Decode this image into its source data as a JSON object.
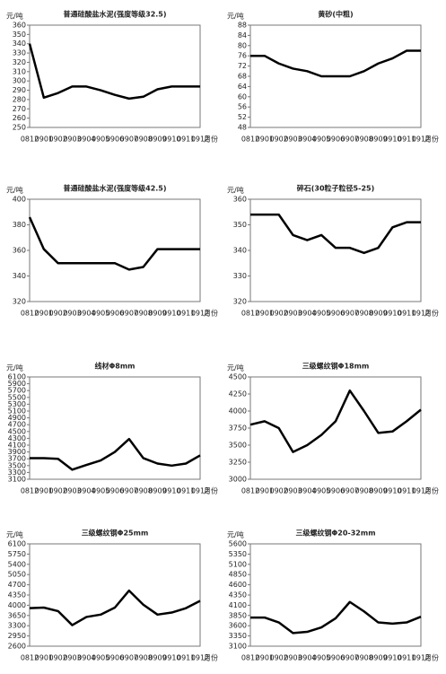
{
  "chart_data": [
    {
      "type": "line",
      "title": "普通硅酸盐水泥(强度等级32.5)",
      "y_unit": "元/吨",
      "x_label": "月份",
      "categories": [
        "0812",
        "0901",
        "0902",
        "0903",
        "0904",
        "0905",
        "0906",
        "0907",
        "0908",
        "0909",
        "0910",
        "0911",
        "0912"
      ],
      "values": [
        340,
        282,
        287,
        294,
        294,
        290,
        285,
        281,
        283,
        291,
        294,
        294,
        294
      ],
      "color": "#000000",
      "ylim": [
        250,
        360
      ],
      "yticks": [
        250,
        260,
        270,
        280,
        290,
        300,
        310,
        320,
        330,
        340,
        350,
        360
      ]
    },
    {
      "type": "line",
      "title": "黄砂(中粗)",
      "y_unit": "元/吨",
      "x_label": "月份",
      "categories": [
        "0812",
        "0901",
        "0902",
        "0903",
        "0904",
        "0905",
        "0906",
        "0907",
        "0908",
        "0909",
        "0910",
        "0911",
        "0912"
      ],
      "values": [
        76,
        76,
        73,
        71,
        70,
        68,
        68,
        68,
        70,
        73,
        75,
        78,
        78
      ],
      "color": "#000000",
      "ylim": [
        48,
        88
      ],
      "yticks": [
        48,
        52,
        56,
        60,
        64,
        68,
        72,
        76,
        80,
        84,
        88
      ]
    },
    {
      "type": "line",
      "title": "普通硅酸盐水泥(强度等级42.5)",
      "y_unit": "元/吨",
      "x_label": "月份",
      "categories": [
        "0812",
        "0901",
        "0902",
        "0903",
        "0904",
        "0905",
        "0906",
        "0907",
        "0908",
        "0909",
        "0910",
        "0911",
        "0912"
      ],
      "values": [
        386,
        361,
        350,
        350,
        350,
        350,
        350,
        345,
        347,
        361,
        361,
        361,
        361
      ],
      "color": "#000000",
      "ylim": [
        320,
        400
      ],
      "yticks": [
        320,
        340,
        360,
        380,
        400
      ]
    },
    {
      "type": "line",
      "title": "碎石(30粒子粒径5-25)",
      "y_unit": "元/吨",
      "x_label": "月份",
      "categories": [
        "0812",
        "0901",
        "0902",
        "0903",
        "0904",
        "0905",
        "0906",
        "0907",
        "0908",
        "0909",
        "0910",
        "0911",
        "0912"
      ],
      "values": [
        354,
        354,
        354,
        346,
        344,
        346,
        341,
        341,
        339,
        341,
        349,
        351,
        351
      ],
      "color": "#000000",
      "ylim": [
        320,
        360
      ],
      "yticks": [
        320,
        330,
        340,
        350,
        360
      ]
    },
    {
      "type": "line",
      "title": "线材Φ8mm",
      "y_unit": "元/吨",
      "x_label": "月份",
      "categories": [
        "0812",
        "0901",
        "0902",
        "0903",
        "0904",
        "0905",
        "0906",
        "0907",
        "0908",
        "0909",
        "0910",
        "0911",
        "0912"
      ],
      "values": [
        3720,
        3720,
        3700,
        3380,
        3520,
        3650,
        3900,
        4280,
        3720,
        3560,
        3500,
        3560,
        3800
      ],
      "color": "#000000",
      "ylim": [
        3100,
        6100
      ],
      "yticks": [
        3100,
        3300,
        3500,
        3700,
        3900,
        4100,
        4300,
        4500,
        4700,
        4900,
        5100,
        5300,
        5500,
        5700,
        5900,
        6100
      ]
    },
    {
      "type": "line",
      "title": "三级螺纹钢Φ18mm",
      "y_unit": "元/吨",
      "x_label": "月份",
      "categories": [
        "0812",
        "0901",
        "0902",
        "0903",
        "0904",
        "0905",
        "0906",
        "0907",
        "0908",
        "0909",
        "0910",
        "0911",
        "0912"
      ],
      "values": [
        3800,
        3850,
        3750,
        3400,
        3500,
        3650,
        3850,
        4300,
        4000,
        3680,
        3700,
        3850,
        4020
      ],
      "color": "#000000",
      "ylim": [
        3000,
        4500
      ],
      "yticks": [
        3000,
        3250,
        3500,
        3750,
        4000,
        4250,
        4500
      ]
    },
    {
      "type": "line",
      "title": "三级螺纹钢Φ25mm",
      "y_unit": "元/吨",
      "x_label": "月份",
      "categories": [
        "0812",
        "0901",
        "0902",
        "0903",
        "0904",
        "0905",
        "0906",
        "0907",
        "0908",
        "0909",
        "0910",
        "0911",
        "0912"
      ],
      "values": [
        3900,
        3920,
        3800,
        3320,
        3600,
        3680,
        3920,
        4500,
        4020,
        3680,
        3750,
        3900,
        4150
      ],
      "color": "#000000",
      "ylim": [
        2600,
        6100
      ],
      "yticks": [
        2600,
        2950,
        3300,
        3650,
        4000,
        4350,
        4700,
        5050,
        5400,
        5750,
        6100
      ]
    },
    {
      "type": "line",
      "title": "三级螺纹钢Φ20-32mm",
      "y_unit": "元/吨",
      "x_label": "月份",
      "categories": [
        "0812",
        "0901",
        "0902",
        "0903",
        "0904",
        "0905",
        "0906",
        "0907",
        "0908",
        "0909",
        "0910",
        "0911",
        "0912"
      ],
      "values": [
        3800,
        3800,
        3680,
        3420,
        3450,
        3560,
        3780,
        4180,
        3950,
        3680,
        3650,
        3680,
        3820
      ],
      "color": "#000000",
      "ylim": [
        3100,
        5600
      ],
      "yticks": [
        3100,
        3350,
        3600,
        3850,
        4100,
        4350,
        4600,
        4850,
        5100,
        5350,
        5600
      ]
    }
  ]
}
